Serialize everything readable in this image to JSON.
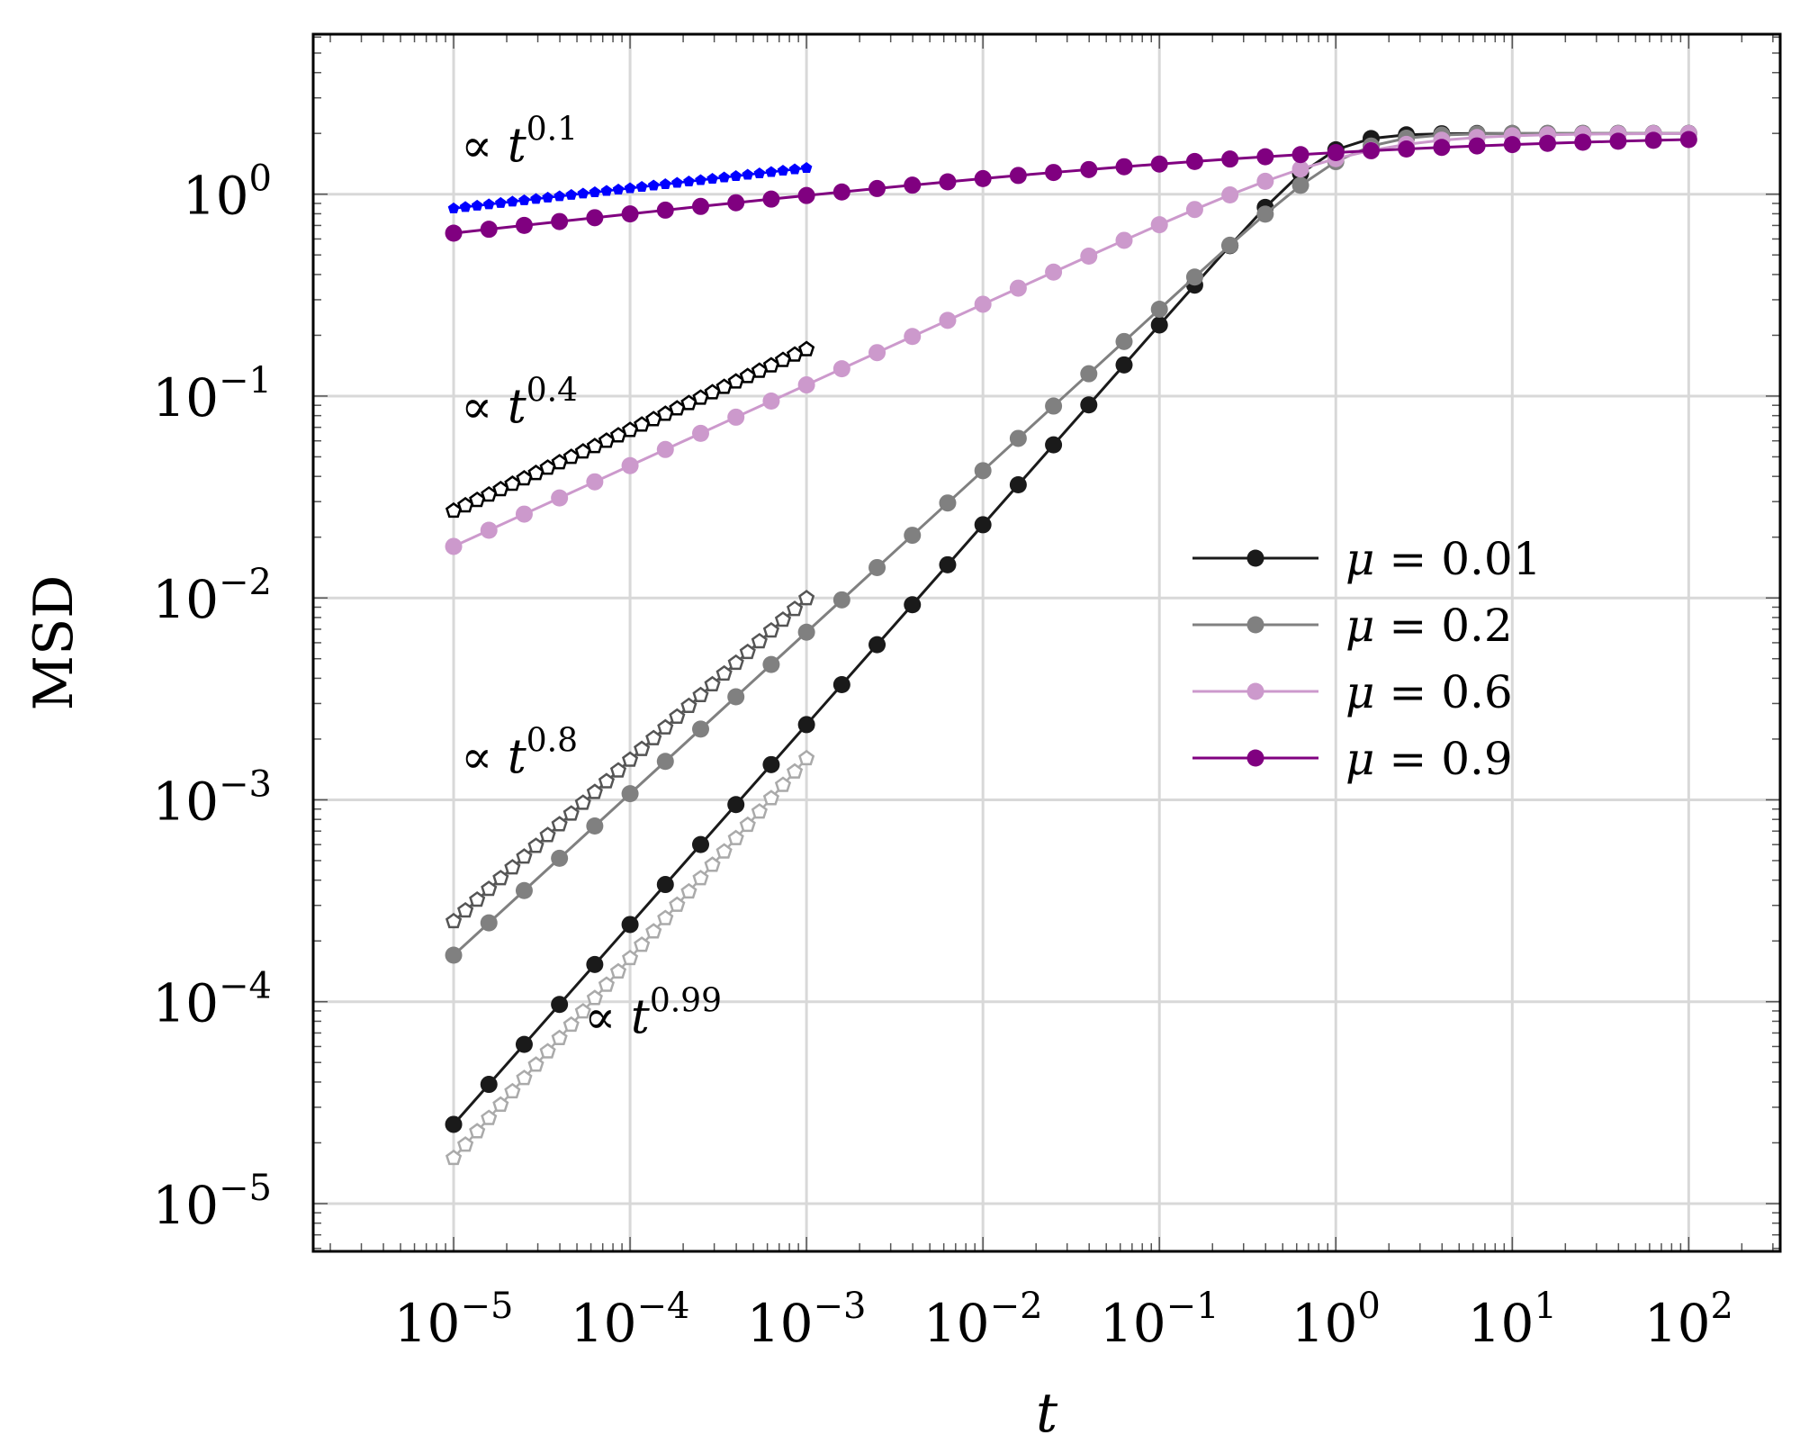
{
  "chart_data": {
    "type": "line",
    "title": "",
    "xlabel": "t",
    "ylabel": "MSD",
    "xscale": "log",
    "yscale": "log",
    "xlim": [
      1.6e-06,
      330
    ],
    "ylim": [
      5.8e-06,
      6.2
    ],
    "grid": true,
    "legend_position": "center-right",
    "x_ticks": [
      {
        "base": "10",
        "exp": "−5"
      },
      {
        "base": "10",
        "exp": "−4"
      },
      {
        "base": "10",
        "exp": "−3"
      },
      {
        "base": "10",
        "exp": "−2"
      },
      {
        "base": "10",
        "exp": "−1"
      },
      {
        "base": "10",
        "exp": "0"
      },
      {
        "base": "10",
        "exp": "1"
      },
      {
        "base": "10",
        "exp": "2"
      }
    ],
    "y_ticks": [
      {
        "base": "10",
        "exp": "−5"
      },
      {
        "base": "10",
        "exp": "−4"
      },
      {
        "base": "10",
        "exp": "−3"
      },
      {
        "base": "10",
        "exp": "−2"
      },
      {
        "base": "10",
        "exp": "−1"
      },
      {
        "base": "10",
        "exp": "0"
      }
    ],
    "series": [
      {
        "name": "μ = 0.01",
        "color": "#1a1a1a",
        "label_prefix": "μ = ",
        "label_value": "0.01",
        "t_start": 1e-05,
        "t_end": 100,
        "points_per_decade": 5,
        "model": "crossover",
        "amplitude": 2.2,
        "exponent": 0.99,
        "plateau": 2.0
      },
      {
        "name": "μ = 0.2",
        "color": "#808080",
        "label_prefix": "μ = ",
        "label_value": "0.2",
        "t_start": 1e-05,
        "t_end": 100,
        "points_per_decade": 5,
        "model": "crossover",
        "amplitude": 1.7,
        "exponent": 0.8,
        "plateau": 2.0
      },
      {
        "name": "μ = 0.6",
        "color": "#cc99cc",
        "label_prefix": "μ = ",
        "label_value": "0.6",
        "t_start": 1e-05,
        "t_end": 100,
        "points_per_decade": 5,
        "model": "crossover",
        "amplitude": 1.8,
        "exponent": 0.4,
        "plateau": 2.0
      },
      {
        "name": "μ = 0.9",
        "color": "#800080",
        "label_prefix": "μ = ",
        "label_value": "0.9",
        "t_start": 1e-05,
        "t_end": 100,
        "points_per_decade": 5,
        "model": "crossover",
        "amplitude": 2.05,
        "exponent": 0.1,
        "plateau": 2.0
      }
    ],
    "reference_lines": [
      {
        "exponent": 0.1,
        "t_start": 1e-05,
        "t_end": 0.001,
        "y_start": 0.85,
        "color": "#0000ff",
        "marker": "filled",
        "points_per_decade": 15
      },
      {
        "exponent": 0.4,
        "t_start": 1e-05,
        "t_end": 0.001,
        "y_start": 0.027,
        "color": "#000000",
        "marker": "open",
        "points_per_decade": 15
      },
      {
        "exponent": 0.8,
        "t_start": 1e-05,
        "t_end": 0.001,
        "y_start": 0.00025,
        "color": "#555555",
        "marker": "open",
        "points_per_decade": 15
      },
      {
        "exponent": 0.99,
        "t_start": 1e-05,
        "t_end": 0.001,
        "y_start": 1.68e-05,
        "color": "#aaaaaa",
        "marker": "open",
        "points_per_decade": 15
      }
    ],
    "annotations": [
      {
        "prefix": "∝ ",
        "var": "t",
        "exp": "0.1",
        "t": 1.1e-05,
        "y": 1.45
      },
      {
        "prefix": "∝ ",
        "var": "t",
        "exp": "0.4",
        "t": 1.1e-05,
        "y": 0.074
      },
      {
        "prefix": "∝ ",
        "var": "t",
        "exp": "0.8",
        "t": 1.1e-05,
        "y": 0.00136
      },
      {
        "prefix": "∝ ",
        "var": "t",
        "exp": "0.99",
        "t": 5.5e-05,
        "y": 7e-05
      }
    ]
  }
}
